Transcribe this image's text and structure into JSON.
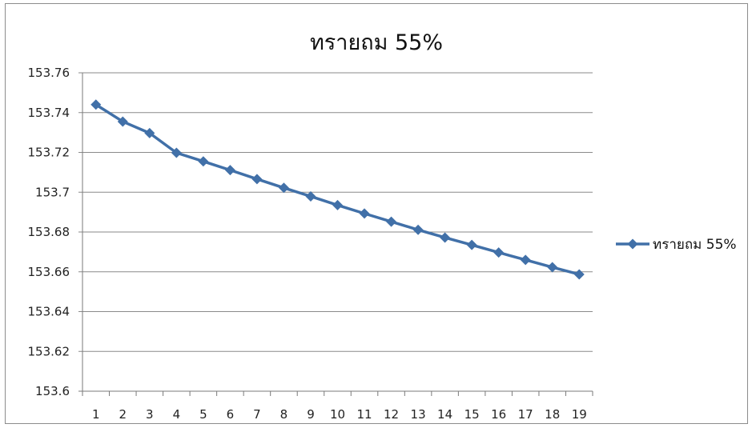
{
  "chart_data": {
    "type": "line",
    "title": "ทรายถม 55%",
    "xlabel": "",
    "ylabel": "",
    "categories": [
      "1",
      "2",
      "3",
      "4",
      "5",
      "6",
      "7",
      "8",
      "9",
      "10",
      "11",
      "12",
      "13",
      "14",
      "15",
      "16",
      "17",
      "18",
      "19"
    ],
    "series": [
      {
        "name": "ทรายถม 55%",
        "color": "#4170a8",
        "marker": "diamond",
        "values": [
          153.744,
          153.7355,
          153.7297,
          153.7198,
          153.7155,
          153.7111,
          153.7066,
          153.7022,
          153.6979,
          153.6935,
          153.6893,
          153.6852,
          153.6811,
          153.6772,
          153.6735,
          153.6697,
          153.666,
          153.6623,
          153.6587
        ]
      }
    ],
    "ylim": [
      153.6,
      153.76
    ],
    "y_ticks": [
      "153.6",
      "153.62",
      "153.64",
      "153.66",
      "153.68",
      "153.7",
      "153.72",
      "153.74",
      "153.76"
    ],
    "y_tick_values": [
      153.6,
      153.62,
      153.64,
      153.66,
      153.68,
      153.7,
      153.72,
      153.74,
      153.76
    ],
    "grid": true,
    "legend_position": "right"
  }
}
